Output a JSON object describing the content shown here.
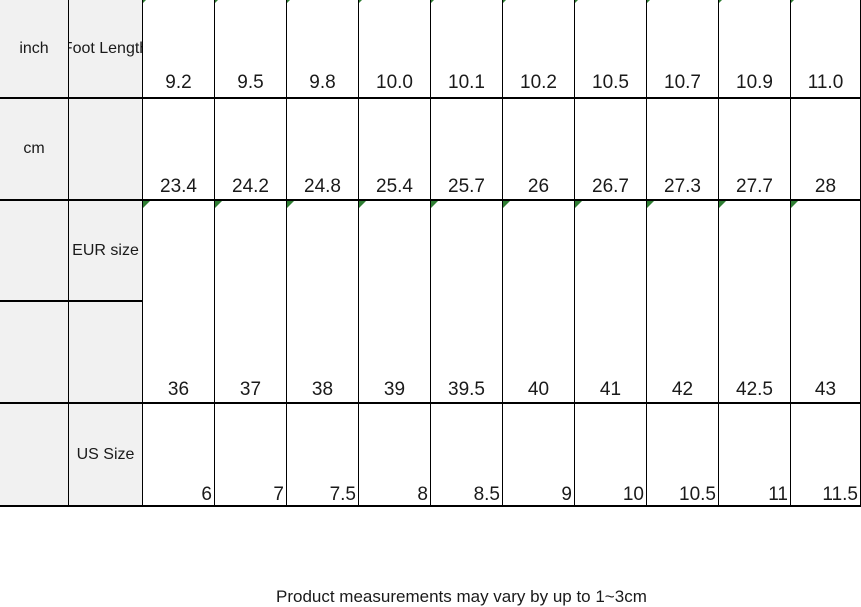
{
  "chart_data": {
    "type": "table",
    "rows": [
      {
        "unit": "inch",
        "label": "Foot Length",
        "values": [
          "9.2",
          "9.5",
          "9.8",
          "10.0",
          "10.1",
          "10.2",
          "10.5",
          "10.7",
          "10.9",
          "11.0"
        ],
        "has_indicator_triangles": true
      },
      {
        "unit": "cm",
        "label": "",
        "values": [
          "23.4",
          "24.2",
          "24.8",
          "25.4",
          "25.7",
          "26",
          "26.7",
          "27.3",
          "27.7",
          "28"
        ],
        "has_indicator_triangles": false
      },
      {
        "unit": "",
        "label": "EUR size",
        "values": [
          "36",
          "37",
          "38",
          "39",
          "39.5",
          "40",
          "41",
          "42",
          "42.5",
          "43"
        ],
        "has_indicator_triangles": true
      },
      {
        "unit": "",
        "label": "US Size",
        "values": [
          "6",
          "7",
          "7.5",
          "8",
          "8.5",
          "9",
          "10",
          "10.5",
          "11",
          "11.5"
        ],
        "has_indicator_triangles": false
      }
    ],
    "footnote": "Product measurements may vary by up to 1~3cm"
  },
  "colors": {
    "grid_line": "#000000",
    "label_cell_bg": "#f1f1f1",
    "data_cell_bg": "#ffffff",
    "text": "#1a1a1a",
    "indicator_green": "#2e7d32"
  }
}
